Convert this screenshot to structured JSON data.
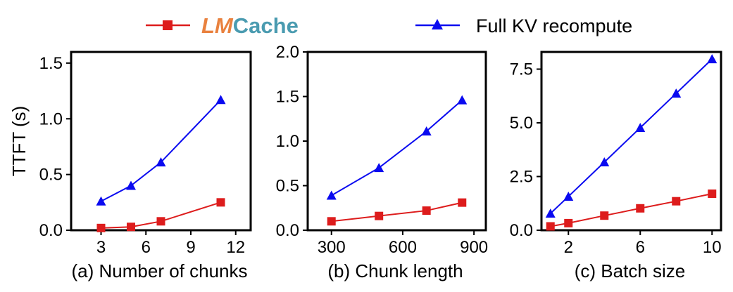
{
  "legend": {
    "items": [
      {
        "brand_part1": "LM",
        "brand_part2": "Cache",
        "color": "#dd1c1c",
        "marker": "square"
      },
      {
        "label": "Full KV recompute",
        "color": "#0a0af0",
        "marker": "triangle"
      }
    ],
    "brand_colors": {
      "part1": "#e9813e",
      "part2": "#4a9bb0"
    }
  },
  "chart_data": [
    {
      "type": "line",
      "xlabel": "(a) Number of chunks",
      "ylabel": "TTFT (s)",
      "xlim": [
        1,
        13
      ],
      "ylim": [
        0,
        1.6
      ],
      "xticks": [
        3,
        6,
        9,
        12
      ],
      "yticks": [
        0.0,
        0.5,
        1.0,
        1.5
      ],
      "yticklabels": [
        "0.0",
        "0.5",
        "1.0",
        "1.5"
      ],
      "series": [
        {
          "name": "LMCache",
          "color": "#dd1c1c",
          "marker": "square",
          "x": [
            3,
            5,
            7,
            11
          ],
          "values": [
            0.02,
            0.03,
            0.08,
            0.25
          ]
        },
        {
          "name": "Full KV recompute",
          "color": "#0a0af0",
          "marker": "triangle",
          "x": [
            3,
            5,
            7,
            11
          ],
          "values": [
            0.26,
            0.4,
            0.61,
            1.17
          ]
        }
      ]
    },
    {
      "type": "line",
      "xlabel": "(b) Chunk length",
      "ylabel": "",
      "xlim": [
        200,
        950
      ],
      "ylim": [
        0,
        2.0
      ],
      "xticks": [
        300,
        600,
        900
      ],
      "yticks": [
        0.0,
        0.5,
        1.0,
        1.5,
        2.0
      ],
      "yticklabels": [
        "0.0",
        "0.5",
        "1.0",
        "1.5",
        "2.0"
      ],
      "series": [
        {
          "name": "LMCache",
          "color": "#dd1c1c",
          "marker": "square",
          "x": [
            300,
            500,
            700,
            850
          ],
          "values": [
            0.1,
            0.16,
            0.22,
            0.31
          ]
        },
        {
          "name": "Full KV recompute",
          "color": "#0a0af0",
          "marker": "triangle",
          "x": [
            300,
            500,
            700,
            850
          ],
          "values": [
            0.39,
            0.7,
            1.11,
            1.46
          ]
        }
      ]
    },
    {
      "type": "line",
      "xlabel": "(c) Batch size",
      "ylabel": "",
      "xlim": [
        0.5,
        10.5
      ],
      "ylim": [
        0,
        8.3
      ],
      "xticks": [
        2,
        6,
        10
      ],
      "yticks": [
        0.0,
        2.5,
        5.0,
        7.5
      ],
      "yticklabels": [
        "0.0",
        "2.5",
        "5.0",
        "7.5"
      ],
      "series": [
        {
          "name": "LMCache",
          "color": "#dd1c1c",
          "marker": "square",
          "x": [
            1,
            2,
            4,
            6,
            8,
            10
          ],
          "values": [
            0.18,
            0.33,
            0.68,
            1.02,
            1.35,
            1.7
          ]
        },
        {
          "name": "Full KV recompute",
          "color": "#0a0af0",
          "marker": "triangle",
          "x": [
            1,
            2,
            4,
            6,
            8,
            10
          ],
          "values": [
            0.78,
            1.57,
            3.17,
            4.77,
            6.37,
            7.97
          ]
        }
      ]
    }
  ]
}
